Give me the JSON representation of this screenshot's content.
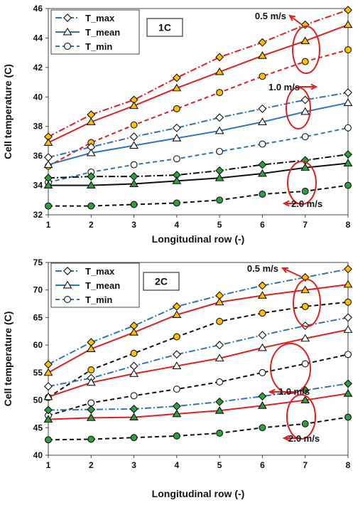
{
  "chart_data": [
    {
      "type": "line",
      "tag": "1C",
      "xlabel": "Longitudinal row (-)",
      "ylabel": "Cell temperature (C)",
      "x": [
        1,
        2,
        3,
        4,
        5,
        6,
        7,
        8
      ],
      "xlim": [
        1,
        8
      ],
      "ylim": [
        32,
        46
      ],
      "yticks": [
        32,
        34,
        36,
        38,
        40,
        42,
        44,
        46
      ],
      "grid": false,
      "legend": [
        {
          "label": "T_max",
          "marker": "diamond",
          "dash": "dashdot"
        },
        {
          "label": "T_mean",
          "marker": "triangle",
          "dash": "solid"
        },
        {
          "label": "T_min",
          "marker": "circle",
          "dash": "dash"
        }
      ],
      "series": [
        {
          "velocity": "0.5 m/s",
          "stat": "T_max",
          "color": "#e02020",
          "marker": "diamond",
          "dash": "dashdot",
          "fill": "#ffc000",
          "values": [
            37.3,
            38.8,
            39.8,
            41.3,
            42.7,
            43.7,
            44.9,
            45.9
          ]
        },
        {
          "velocity": "0.5 m/s",
          "stat": "T_mean",
          "color": "#e02020",
          "marker": "triangle",
          "dash": "solid",
          "fill": "#ffc000",
          "values": [
            36.9,
            38.3,
            39.4,
            40.6,
            41.7,
            42.8,
            43.8,
            44.9
          ]
        },
        {
          "velocity": "0.5 m/s",
          "stat": "T_min",
          "color": "#e02020",
          "marker": "circle",
          "dash": "dash",
          "fill": "#ffc000",
          "values": [
            35.3,
            36.9,
            38.1,
            39.2,
            40.3,
            41.4,
            42.4,
            43.2
          ]
        },
        {
          "velocity": "1.0 m/s",
          "stat": "T_max",
          "color": "#2e75b6",
          "marker": "diamond",
          "dash": "dashdot",
          "fill": "#ffffff",
          "values": [
            35.9,
            36.6,
            37.3,
            37.9,
            38.6,
            39.2,
            39.8,
            40.3
          ]
        },
        {
          "velocity": "1.0 m/s",
          "stat": "T_mean",
          "color": "#2e75b6",
          "marker": "triangle",
          "dash": "solid",
          "fill": "#ffffff",
          "values": [
            35.4,
            36.2,
            36.7,
            37.2,
            37.7,
            38.3,
            39.0,
            39.6
          ]
        },
        {
          "velocity": "1.0 m/s",
          "stat": "T_min",
          "color": "#2e75b6",
          "marker": "circle",
          "dash": "dash",
          "fill": "#ffffff",
          "values": [
            34.2,
            34.9,
            35.4,
            35.8,
            36.3,
            36.8,
            37.3,
            37.9
          ]
        },
        {
          "velocity": "2.0 m/s",
          "stat": "T_max",
          "color": "#111111",
          "marker": "diamond",
          "dash": "dashdot",
          "fill": "#2e9e3e",
          "values": [
            34.5,
            34.6,
            34.6,
            34.7,
            35.0,
            35.4,
            35.7,
            36.1
          ]
        },
        {
          "velocity": "2.0 m/s",
          "stat": "T_mean",
          "color": "#111111",
          "marker": "triangle",
          "dash": "solid",
          "fill": "#2e9e3e",
          "values": [
            34.0,
            34.0,
            34.1,
            34.3,
            34.5,
            34.8,
            35.2,
            35.5
          ]
        },
        {
          "velocity": "2.0 m/s",
          "stat": "T_min",
          "color": "#111111",
          "marker": "circle",
          "dash": "dash",
          "fill": "#2e9e3e",
          "values": [
            32.6,
            32.6,
            32.7,
            32.8,
            33.0,
            33.4,
            33.6,
            34.0
          ]
        }
      ],
      "annotations": [
        "0.5 m/s",
        "1.0 m/s",
        "2.0 m/s"
      ]
    },
    {
      "type": "line",
      "tag": "2C",
      "xlabel": "Longitudinal row (-)",
      "ylabel": "Cell temperature (C)",
      "x": [
        1,
        2,
        3,
        4,
        5,
        6,
        7,
        8
      ],
      "xlim": [
        1,
        8
      ],
      "ylim": [
        40,
        75
      ],
      "yticks": [
        40,
        45,
        50,
        55,
        60,
        65,
        70,
        75
      ],
      "grid": false,
      "legend": [
        {
          "label": "T_max",
          "marker": "diamond",
          "dash": "dashdot"
        },
        {
          "label": "T_mean",
          "marker": "triangle",
          "dash": "solid"
        },
        {
          "label": "T_min",
          "marker": "circle",
          "dash": "dash"
        }
      ],
      "series": [
        {
          "velocity": "0.5 m/s",
          "stat": "T_max",
          "color": "#2e75b6",
          "marker": "diamond",
          "dash": "dashdot",
          "fill": "#ffc000",
          "values": [
            56.5,
            60.5,
            63.5,
            67.0,
            69.0,
            70.8,
            72.3,
            73.8
          ]
        },
        {
          "velocity": "0.5 m/s",
          "stat": "T_mean",
          "color": "#e02020",
          "marker": "triangle",
          "dash": "solid",
          "fill": "#ffc000",
          "values": [
            55.0,
            59.3,
            62.3,
            65.5,
            67.8,
            69.0,
            70.0,
            71.0
          ]
        },
        {
          "velocity": "0.5 m/s",
          "stat": "T_min",
          "color": "#111111",
          "marker": "circle",
          "dash": "dash",
          "fill": "#ffc000",
          "values": [
            50.5,
            55.5,
            58.5,
            61.5,
            64.3,
            65.8,
            67.0,
            67.8
          ]
        },
        {
          "velocity": "1.0 m/s",
          "stat": "T_max",
          "color": "#2e75b6",
          "marker": "diamond",
          "dash": "dashdot",
          "fill": "#ffffff",
          "values": [
            52.5,
            54.0,
            56.2,
            58.3,
            60.0,
            61.8,
            63.5,
            65.0
          ]
        },
        {
          "velocity": "1.0 m/s",
          "stat": "T_mean",
          "color": "#e02020",
          "marker": "triangle",
          "dash": "solid",
          "fill": "#ffffff",
          "values": [
            50.6,
            53.2,
            54.8,
            56.2,
            57.6,
            59.5,
            61.2,
            62.8
          ]
        },
        {
          "velocity": "1.0 m/s",
          "stat": "T_min",
          "color": "#111111",
          "marker": "circle",
          "dash": "dash",
          "fill": "#ffffff",
          "values": [
            47.2,
            49.5,
            50.8,
            52.0,
            53.3,
            55.0,
            56.6,
            58.3
          ]
        },
        {
          "velocity": "2.0 m/s",
          "stat": "T_max",
          "color": "#2e75b6",
          "marker": "diamond",
          "dash": "dashdot",
          "fill": "#2e9e3e",
          "values": [
            48.2,
            48.3,
            48.4,
            48.9,
            49.7,
            50.7,
            51.8,
            53.0
          ]
        },
        {
          "velocity": "2.0 m/s",
          "stat": "T_mean",
          "color": "#e02020",
          "marker": "triangle",
          "dash": "solid",
          "fill": "#2e9e3e",
          "values": [
            46.5,
            46.8,
            46.9,
            47.5,
            48.1,
            49.0,
            50.0,
            51.2
          ]
        },
        {
          "velocity": "2.0 m/s",
          "stat": "T_min",
          "color": "#111111",
          "marker": "circle",
          "dash": "dash",
          "fill": "#2e9e3e",
          "values": [
            42.8,
            42.9,
            43.2,
            43.5,
            44.0,
            45.0,
            45.7,
            46.9
          ]
        }
      ],
      "annotations": [
        "0.5 m/s",
        "1.0 m/s",
        "2.0 m/s"
      ]
    }
  ]
}
